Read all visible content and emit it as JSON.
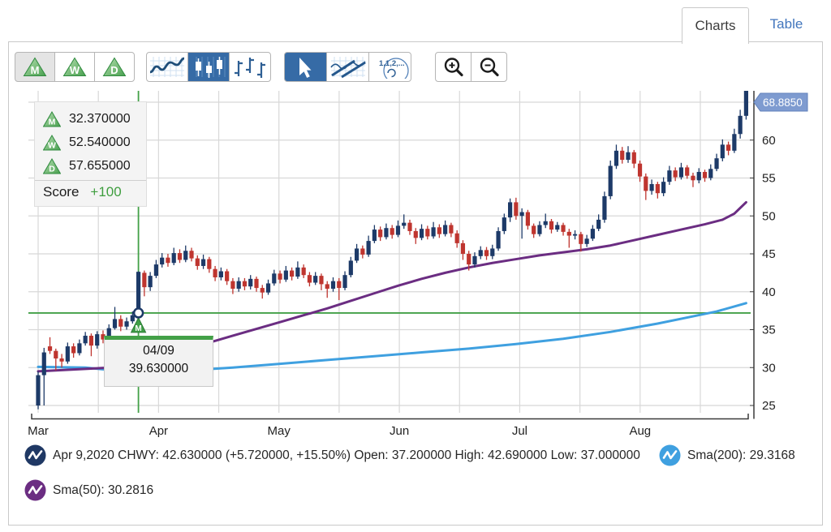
{
  "tabs": [
    {
      "label": "Charts",
      "active": true
    },
    {
      "label": "Table",
      "active": false
    }
  ],
  "toolbar": {
    "periods": [
      {
        "label": "M",
        "selected": true
      },
      {
        "label": "W",
        "selected": false
      },
      {
        "label": "D",
        "selected": false
      }
    ],
    "chart_types": [
      {
        "name": "line-chart",
        "selected": false
      },
      {
        "name": "candlestick-chart",
        "selected": true
      },
      {
        "name": "ohlc-chart",
        "selected": false
      }
    ],
    "tools": [
      {
        "name": "pointer",
        "selected": true
      },
      {
        "name": "trendlines",
        "selected": false
      },
      {
        "name": "fibonacci",
        "selected": false,
        "label": "1,1,2,..."
      }
    ],
    "zoom": [
      {
        "name": "zoom-in"
      },
      {
        "name": "zoom-out"
      }
    ]
  },
  "legend": {
    "rows": [
      {
        "letter": "M",
        "value": "32.370000"
      },
      {
        "letter": "W",
        "value": "52.540000"
      },
      {
        "letter": "D",
        "value": "57.655000"
      }
    ],
    "score_label": "Score",
    "score_value": "+100"
  },
  "tooltip": {
    "date": "04/09",
    "value": "39.630000"
  },
  "price_badge": {
    "value": "68.8850"
  },
  "status": {
    "line1": "Apr 9,2020 CHWY: 42.630000 (+5.720000, +15.50%) Open: 37.200000 High: 42.690000 Low: 37.000000",
    "sma200": "Sma(200): 29.3168",
    "sma50": "Sma(50): 30.2816"
  },
  "colors": {
    "up": "#1d3a68",
    "down": "#bf352f",
    "sma50": "#6b2d82",
    "sma200": "#3fa0e0",
    "green": "#43a047",
    "score_green": "#3f9e3f",
    "accent": "#366ba6",
    "badge": "#7e9bd0",
    "tab_blue": "#4276bd",
    "price_icon": "#1f3864",
    "grid": "#d8d8d8",
    "axis": "#3a3a3a"
  },
  "chart_data": {
    "type": "candlestick",
    "symbol": "CHWY",
    "x_labels": [
      "Mar",
      "Apr",
      "May",
      "Jun",
      "Jul",
      "Aug"
    ],
    "y_ticks": [
      25,
      30,
      35,
      40,
      45,
      50,
      55,
      60
    ],
    "ylim": [
      25,
      67
    ],
    "grid": true,
    "last_price": 68.885,
    "crosshair": {
      "date": "04/09",
      "index": 17,
      "price": 37.2,
      "ohlc": {
        "open": 37.2,
        "high": 42.69,
        "low": 37.0,
        "close": 42.63,
        "change": 5.72,
        "change_pct": 15.5
      }
    },
    "markers": [
      {
        "label": "M",
        "index": 17,
        "price": 37.2,
        "shape": "triangle-up"
      }
    ],
    "candles": [
      [
        25.0,
        29.5,
        24.5,
        29.0
      ],
      [
        29.0,
        32.6,
        25.0,
        32.0
      ],
      [
        32.8,
        34.0,
        31.8,
        32.2
      ],
      [
        32.2,
        32.5,
        29.6,
        31.2
      ],
      [
        31.2,
        31.8,
        30.0,
        30.8
      ],
      [
        30.8,
        33.3,
        30.5,
        32.8
      ],
      [
        32.8,
        33.2,
        31.3,
        31.9
      ],
      [
        31.9,
        33.7,
        31.6,
        33.2
      ],
      [
        33.2,
        34.7,
        32.9,
        34.2
      ],
      [
        34.2,
        34.5,
        31.5,
        32.9
      ],
      [
        32.9,
        34.8,
        32.5,
        34.4
      ],
      [
        34.4,
        34.9,
        33.2,
        33.7
      ],
      [
        33.7,
        35.7,
        33.4,
        35.2
      ],
      [
        35.2,
        38.0,
        35.0,
        36.4
      ],
      [
        36.4,
        36.9,
        34.8,
        35.4
      ],
      [
        35.4,
        36.6,
        35.0,
        36.1
      ],
      [
        36.1,
        37.4,
        35.8,
        36.9
      ],
      [
        37.2,
        42.69,
        37.0,
        42.63
      ],
      [
        42.5,
        42.8,
        39.4,
        40.6
      ],
      [
        40.6,
        42.6,
        40.1,
        42.1
      ],
      [
        42.1,
        44.2,
        41.8,
        43.6
      ],
      [
        43.6,
        45.1,
        43.2,
        44.5
      ],
      [
        44.5,
        45.0,
        43.3,
        43.8
      ],
      [
        43.8,
        45.8,
        43.5,
        45.1
      ],
      [
        45.1,
        45.6,
        43.8,
        44.2
      ],
      [
        44.2,
        46.1,
        43.9,
        45.4
      ],
      [
        45.4,
        45.8,
        44.0,
        44.4
      ],
      [
        44.4,
        44.8,
        42.9,
        43.4
      ],
      [
        43.4,
        44.9,
        43.0,
        44.3
      ],
      [
        44.3,
        44.6,
        42.5,
        43.0
      ],
      [
        43.0,
        43.4,
        41.4,
        41.9
      ],
      [
        41.9,
        43.2,
        41.5,
        42.7
      ],
      [
        42.7,
        43.0,
        40.9,
        41.4
      ],
      [
        41.4,
        41.8,
        39.7,
        40.4
      ],
      [
        40.4,
        41.9,
        40.0,
        41.4
      ],
      [
        41.4,
        41.8,
        40.2,
        40.7
      ],
      [
        40.7,
        42.2,
        40.3,
        41.7
      ],
      [
        41.7,
        42.0,
        40.0,
        40.5
      ],
      [
        40.5,
        40.9,
        39.1,
        39.9
      ],
      [
        39.9,
        41.6,
        39.6,
        41.1
      ],
      [
        41.1,
        42.9,
        40.8,
        42.4
      ],
      [
        42.4,
        42.8,
        41.1,
        41.6
      ],
      [
        41.6,
        43.4,
        41.3,
        42.8
      ],
      [
        42.8,
        43.2,
        41.5,
        42.0
      ],
      [
        42.0,
        44.0,
        41.7,
        43.2
      ],
      [
        43.2,
        43.6,
        41.8,
        42.2
      ],
      [
        42.2,
        42.6,
        40.7,
        41.2
      ],
      [
        41.2,
        42.6,
        40.9,
        42.1
      ],
      [
        42.1,
        42.4,
        40.2,
        41.0
      ],
      [
        41.0,
        41.4,
        39.2,
        40.4
      ],
      [
        40.4,
        41.9,
        40.0,
        41.4
      ],
      [
        41.4,
        41.8,
        38.9,
        40.5
      ],
      [
        40.5,
        42.7,
        40.2,
        42.2
      ],
      [
        42.2,
        44.6,
        41.9,
        44.1
      ],
      [
        44.1,
        46.3,
        43.8,
        45.7
      ],
      [
        45.7,
        46.1,
        44.4,
        44.9
      ],
      [
        44.9,
        47.4,
        44.6,
        46.7
      ],
      [
        46.7,
        48.8,
        46.4,
        48.2
      ],
      [
        48.2,
        48.6,
        46.7,
        47.2
      ],
      [
        47.2,
        49.0,
        46.9,
        48.4
      ],
      [
        48.4,
        48.8,
        47.0,
        47.5
      ],
      [
        47.5,
        49.4,
        47.2,
        48.7
      ],
      [
        48.7,
        50.2,
        48.3,
        49.1
      ],
      [
        49.1,
        49.5,
        47.5,
        48.0
      ],
      [
        48.0,
        48.4,
        46.3,
        47.1
      ],
      [
        47.1,
        48.9,
        46.8,
        48.3
      ],
      [
        48.3,
        48.7,
        46.9,
        47.3
      ],
      [
        47.3,
        49.2,
        47.0,
        48.5
      ],
      [
        48.5,
        48.9,
        47.1,
        47.6
      ],
      [
        47.6,
        49.4,
        47.3,
        48.8
      ],
      [
        48.8,
        49.1,
        47.2,
        47.7
      ],
      [
        47.7,
        48.1,
        45.8,
        46.4
      ],
      [
        46.4,
        46.8,
        44.2,
        45.0
      ],
      [
        45.0,
        45.4,
        42.8,
        43.6
      ],
      [
        43.6,
        45.2,
        43.2,
        44.7
      ],
      [
        44.7,
        46.0,
        44.3,
        45.5
      ],
      [
        45.5,
        45.9,
        44.2,
        44.7
      ],
      [
        44.7,
        46.2,
        44.3,
        45.7
      ],
      [
        45.7,
        48.5,
        45.4,
        48.0
      ],
      [
        48.0,
        50.3,
        47.6,
        49.8
      ],
      [
        49.8,
        52.3,
        49.2,
        51.8
      ],
      [
        51.8,
        52.4,
        49.5,
        50.0
      ],
      [
        50.0,
        51.0,
        47.0,
        50.5
      ],
      [
        50.5,
        50.8,
        48.2,
        48.7
      ],
      [
        48.7,
        49.0,
        47.1,
        47.6
      ],
      [
        47.6,
        49.3,
        47.3,
        48.8
      ],
      [
        48.8,
        50.3,
        48.4,
        49.3
      ],
      [
        49.3,
        49.6,
        47.7,
        48.2
      ],
      [
        48.2,
        49.2,
        47.9,
        48.8
      ],
      [
        48.8,
        49.1,
        47.4,
        47.9
      ],
      [
        47.9,
        48.3,
        45.8,
        47.4
      ],
      [
        47.4,
        48.1,
        46.9,
        47.6
      ],
      [
        47.6,
        47.9,
        45.3,
        46.3
      ],
      [
        46.3,
        47.5,
        45.9,
        47.0
      ],
      [
        47.0,
        48.8,
        46.7,
        48.3
      ],
      [
        48.3,
        50.2,
        48.0,
        49.5
      ],
      [
        49.5,
        53.2,
        49.1,
        52.6
      ],
      [
        52.6,
        57.3,
        52.2,
        56.6
      ],
      [
        56.6,
        59.4,
        56.2,
        58.6
      ],
      [
        58.6,
        59.1,
        56.9,
        57.4
      ],
      [
        57.4,
        59.2,
        57.0,
        58.4
      ],
      [
        58.4,
        58.7,
        56.3,
        56.9
      ],
      [
        56.9,
        57.3,
        54.5,
        55.2
      ],
      [
        55.2,
        55.6,
        52.1,
        53.3
      ],
      [
        53.3,
        54.8,
        52.8,
        54.2
      ],
      [
        54.2,
        54.5,
        52.3,
        53.0
      ],
      [
        53.0,
        55.1,
        52.6,
        54.5
      ],
      [
        54.5,
        56.6,
        54.1,
        56.0
      ],
      [
        56.0,
        56.4,
        54.6,
        55.1
      ],
      [
        55.1,
        57.0,
        54.8,
        56.4
      ],
      [
        56.4,
        56.7,
        54.9,
        55.3
      ],
      [
        55.3,
        55.7,
        53.8,
        54.7
      ],
      [
        54.7,
        56.3,
        54.3,
        55.8
      ],
      [
        55.8,
        56.1,
        54.5,
        55.0
      ],
      [
        55.0,
        56.8,
        54.7,
        56.2
      ],
      [
        56.2,
        58.2,
        55.9,
        57.6
      ],
      [
        57.6,
        60.1,
        57.2,
        59.4
      ],
      [
        59.4,
        59.8,
        58.0,
        58.6
      ],
      [
        58.6,
        61.5,
        58.3,
        60.8
      ],
      [
        60.8,
        64.0,
        60.2,
        63.2
      ],
      [
        63.2,
        69.0,
        62.7,
        68.885
      ]
    ],
    "sma50": {
      "label": "Sma(50)",
      "value_at_crosshair": 30.2816,
      "points": [
        [
          0,
          29.5
        ],
        [
          5,
          29.7
        ],
        [
          10,
          29.9
        ],
        [
          14,
          30.1
        ],
        [
          17,
          30.28
        ],
        [
          21,
          31.3
        ],
        [
          25,
          32.4
        ],
        [
          29,
          33.3
        ],
        [
          33,
          34.2
        ],
        [
          37,
          35.1
        ],
        [
          41,
          36.0
        ],
        [
          45,
          36.9
        ],
        [
          49,
          37.8
        ],
        [
          53,
          38.8
        ],
        [
          57,
          39.8
        ],
        [
          61,
          40.8
        ],
        [
          65,
          41.7
        ],
        [
          69,
          42.5
        ],
        [
          73,
          43.2
        ],
        [
          77,
          43.8
        ],
        [
          81,
          44.3
        ],
        [
          85,
          44.8
        ],
        [
          89,
          45.2
        ],
        [
          93,
          45.6
        ],
        [
          97,
          46.1
        ],
        [
          101,
          46.8
        ],
        [
          105,
          47.5
        ],
        [
          109,
          48.2
        ],
        [
          113,
          48.9
        ],
        [
          116,
          49.5
        ],
        [
          118,
          50.3
        ],
        [
          120,
          51.8
        ]
      ]
    },
    "sma200": {
      "label": "Sma(200)",
      "value_at_crosshair": 29.3168,
      "points": [
        [
          0,
          30.1
        ],
        [
          8,
          30.0
        ],
        [
          17,
          29.32
        ],
        [
          25,
          29.6
        ],
        [
          33,
          30.0
        ],
        [
          41,
          30.5
        ],
        [
          49,
          31.0
        ],
        [
          57,
          31.5
        ],
        [
          65,
          32.0
        ],
        [
          73,
          32.5
        ],
        [
          81,
          33.1
        ],
        [
          89,
          33.8
        ],
        [
          97,
          34.7
        ],
        [
          105,
          35.8
        ],
        [
          110,
          36.6
        ],
        [
          115,
          37.4
        ],
        [
          120,
          38.5
        ]
      ]
    }
  }
}
